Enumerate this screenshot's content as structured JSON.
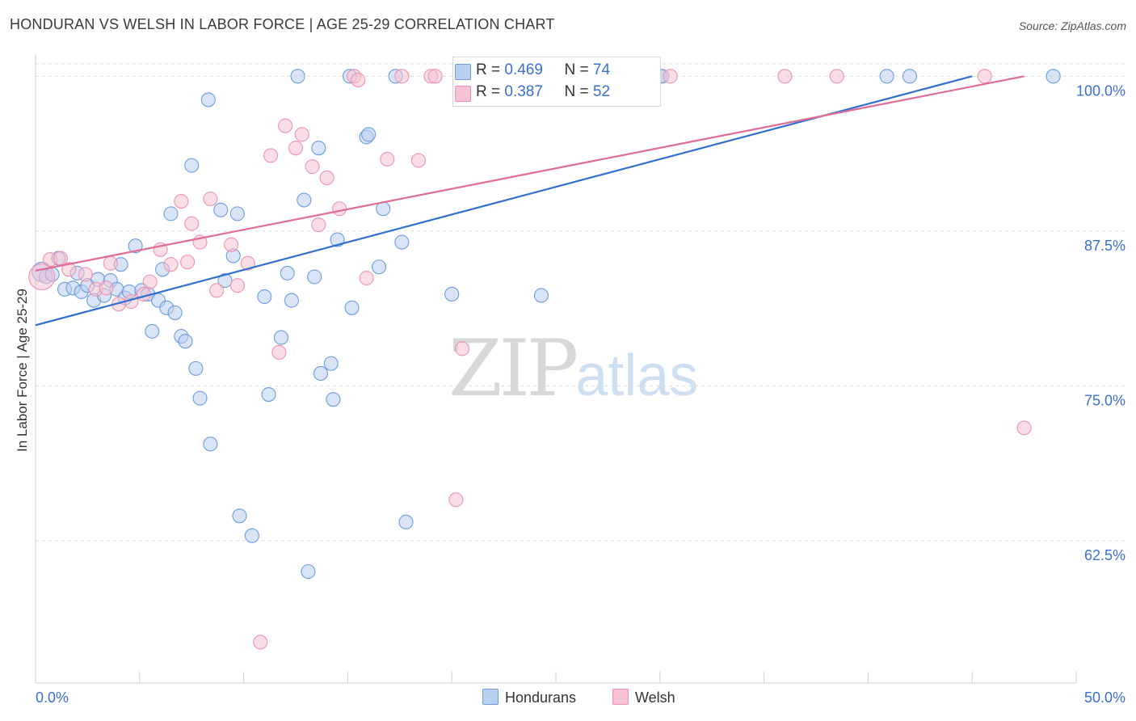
{
  "title": "HONDURAN VS WELSH IN LABOR FORCE | AGE 25-29 CORRELATION CHART",
  "source": "Source: ZipAtlas.com",
  "watermark": {
    "zip": "ZIP",
    "atlas": "atlas"
  },
  "legend": {
    "hondurans": {
      "r_label": "R =",
      "r_value": "0.469",
      "n_label": "N =",
      "n_value": "74"
    },
    "welsh": {
      "r_label": "R =",
      "r_value": "0.387",
      "n_label": "N =",
      "n_value": "52"
    }
  },
  "colors": {
    "hondurans": "#6b9be0",
    "hondurans_fill": "#b9d0f1",
    "hondurans_line": "#2f6fd0",
    "welsh": "#ef92ad",
    "welsh_fill": "#f6c3d2",
    "welsh_line": "#e06b94",
    "tick_label": "#3a6fd1",
    "grid": "#dcdcdc"
  },
  "chart_data": {
    "type": "scatter",
    "title": "HONDURAN VS WELSH IN LABOR FORCE | AGE 25-29 CORRELATION CHART",
    "xlabel": "",
    "ylabel": "In Labor Force | Age 25-29",
    "xlim": [
      0,
      50
    ],
    "ylim": [
      51,
      101
    ],
    "x_tick_labels": [
      "0.0%",
      "50.0%"
    ],
    "y_ticks": [
      62.5,
      75.0,
      87.5,
      100.0
    ],
    "y_tick_labels": [
      "62.5%",
      "75.0%",
      "87.5%",
      "100.0%"
    ],
    "grid": true,
    "legend_position": "top-center",
    "series": [
      {
        "name": "Hondurans",
        "trend": {
          "x": [
            0,
            45
          ],
          "y": [
            79.9,
            100.0
          ]
        },
        "points": [
          [
            0.3,
            84.2
          ],
          [
            0.5,
            83.8
          ],
          [
            0.8,
            84.0
          ],
          [
            1.1,
            85.3
          ],
          [
            1.4,
            82.8
          ],
          [
            1.8,
            82.9
          ],
          [
            2.0,
            84.1
          ],
          [
            2.2,
            82.6
          ],
          [
            2.5,
            83.1
          ],
          [
            2.8,
            81.9
          ],
          [
            3.0,
            83.6
          ],
          [
            3.3,
            82.3
          ],
          [
            3.6,
            83.5
          ],
          [
            3.9,
            82.8
          ],
          [
            4.1,
            84.8
          ],
          [
            4.3,
            82.1
          ],
          [
            4.5,
            82.6
          ],
          [
            4.8,
            86.3
          ],
          [
            5.1,
            82.7
          ],
          [
            5.4,
            82.4
          ],
          [
            5.6,
            79.4
          ],
          [
            5.9,
            81.9
          ],
          [
            6.1,
            84.4
          ],
          [
            6.3,
            81.3
          ],
          [
            6.5,
            88.9
          ],
          [
            6.7,
            80.9
          ],
          [
            7.0,
            79.0
          ],
          [
            7.2,
            78.6
          ],
          [
            7.5,
            92.8
          ],
          [
            7.7,
            76.4
          ],
          [
            7.9,
            74.0
          ],
          [
            8.3,
            98.1
          ],
          [
            8.4,
            70.3
          ],
          [
            8.9,
            89.2
          ],
          [
            9.1,
            83.5
          ],
          [
            9.5,
            85.5
          ],
          [
            9.7,
            88.9
          ],
          [
            9.8,
            64.5
          ],
          [
            10.4,
            62.9
          ],
          [
            11.0,
            82.2
          ],
          [
            11.2,
            74.3
          ],
          [
            11.8,
            78.9
          ],
          [
            12.1,
            84.1
          ],
          [
            12.3,
            81.9
          ],
          [
            12.6,
            100.0
          ],
          [
            12.9,
            90.0
          ],
          [
            13.1,
            60.0
          ],
          [
            13.4,
            83.8
          ],
          [
            13.6,
            94.2
          ],
          [
            13.7,
            76.0
          ],
          [
            14.2,
            76.8
          ],
          [
            14.3,
            73.9
          ],
          [
            14.5,
            86.8
          ],
          [
            15.1,
            100.0
          ],
          [
            15.2,
            81.3
          ],
          [
            15.9,
            95.1
          ],
          [
            16.0,
            95.3
          ],
          [
            16.5,
            84.6
          ],
          [
            16.7,
            89.3
          ],
          [
            17.3,
            100.0
          ],
          [
            17.6,
            86.6
          ],
          [
            17.8,
            64.0
          ],
          [
            20.0,
            82.4
          ],
          [
            20.5,
            100.0
          ],
          [
            24.3,
            82.3
          ],
          [
            25.0,
            100.0
          ],
          [
            27.0,
            100.0
          ],
          [
            28.0,
            100.0
          ],
          [
            28.3,
            100.0
          ],
          [
            30.0,
            100.0
          ],
          [
            30.1,
            100.0
          ],
          [
            40.9,
            100.0
          ],
          [
            42.0,
            100.0
          ],
          [
            48.9,
            100.0
          ]
        ]
      },
      {
        "name": "Welsh",
        "trend": {
          "x": [
            0,
            47.5
          ],
          "y": [
            84.3,
            100.0
          ]
        },
        "points": [
          [
            0.3,
            83.8
          ],
          [
            0.7,
            85.2
          ],
          [
            1.2,
            85.3
          ],
          [
            1.6,
            84.4
          ],
          [
            2.4,
            84.0
          ],
          [
            2.9,
            82.8
          ],
          [
            3.4,
            82.9
          ],
          [
            3.6,
            84.9
          ],
          [
            4.0,
            81.6
          ],
          [
            4.6,
            81.8
          ],
          [
            5.2,
            82.4
          ],
          [
            5.5,
            83.4
          ],
          [
            6.0,
            86.0
          ],
          [
            6.5,
            84.8
          ],
          [
            7.0,
            89.9
          ],
          [
            7.3,
            85.0
          ],
          [
            7.5,
            88.1
          ],
          [
            7.9,
            86.6
          ],
          [
            8.4,
            90.1
          ],
          [
            8.7,
            82.7
          ],
          [
            9.4,
            86.4
          ],
          [
            9.7,
            83.1
          ],
          [
            10.2,
            84.9
          ],
          [
            10.8,
            54.3
          ],
          [
            11.3,
            93.6
          ],
          [
            11.7,
            77.7
          ],
          [
            12.0,
            96.0
          ],
          [
            12.5,
            94.2
          ],
          [
            12.8,
            95.3
          ],
          [
            13.3,
            92.7
          ],
          [
            13.6,
            88.0
          ],
          [
            14.0,
            91.8
          ],
          [
            14.6,
            89.3
          ],
          [
            15.3,
            100.0
          ],
          [
            15.5,
            99.7
          ],
          [
            15.9,
            83.7
          ],
          [
            16.9,
            93.3
          ],
          [
            17.6,
            100.0
          ],
          [
            18.4,
            93.2
          ],
          [
            19.0,
            100.0
          ],
          [
            19.2,
            100.0
          ],
          [
            20.2,
            65.8
          ],
          [
            20.5,
            78.0
          ],
          [
            21.0,
            100.0
          ],
          [
            22.3,
            100.0
          ],
          [
            25.7,
            100.0
          ],
          [
            28.0,
            100.0
          ],
          [
            30.5,
            100.0
          ],
          [
            36.0,
            100.0
          ],
          [
            38.5,
            100.0
          ],
          [
            45.6,
            100.0
          ],
          [
            47.5,
            71.6
          ]
        ]
      }
    ]
  },
  "bottom_legend": {
    "hondurans": "Hondurans",
    "welsh": "Welsh"
  }
}
